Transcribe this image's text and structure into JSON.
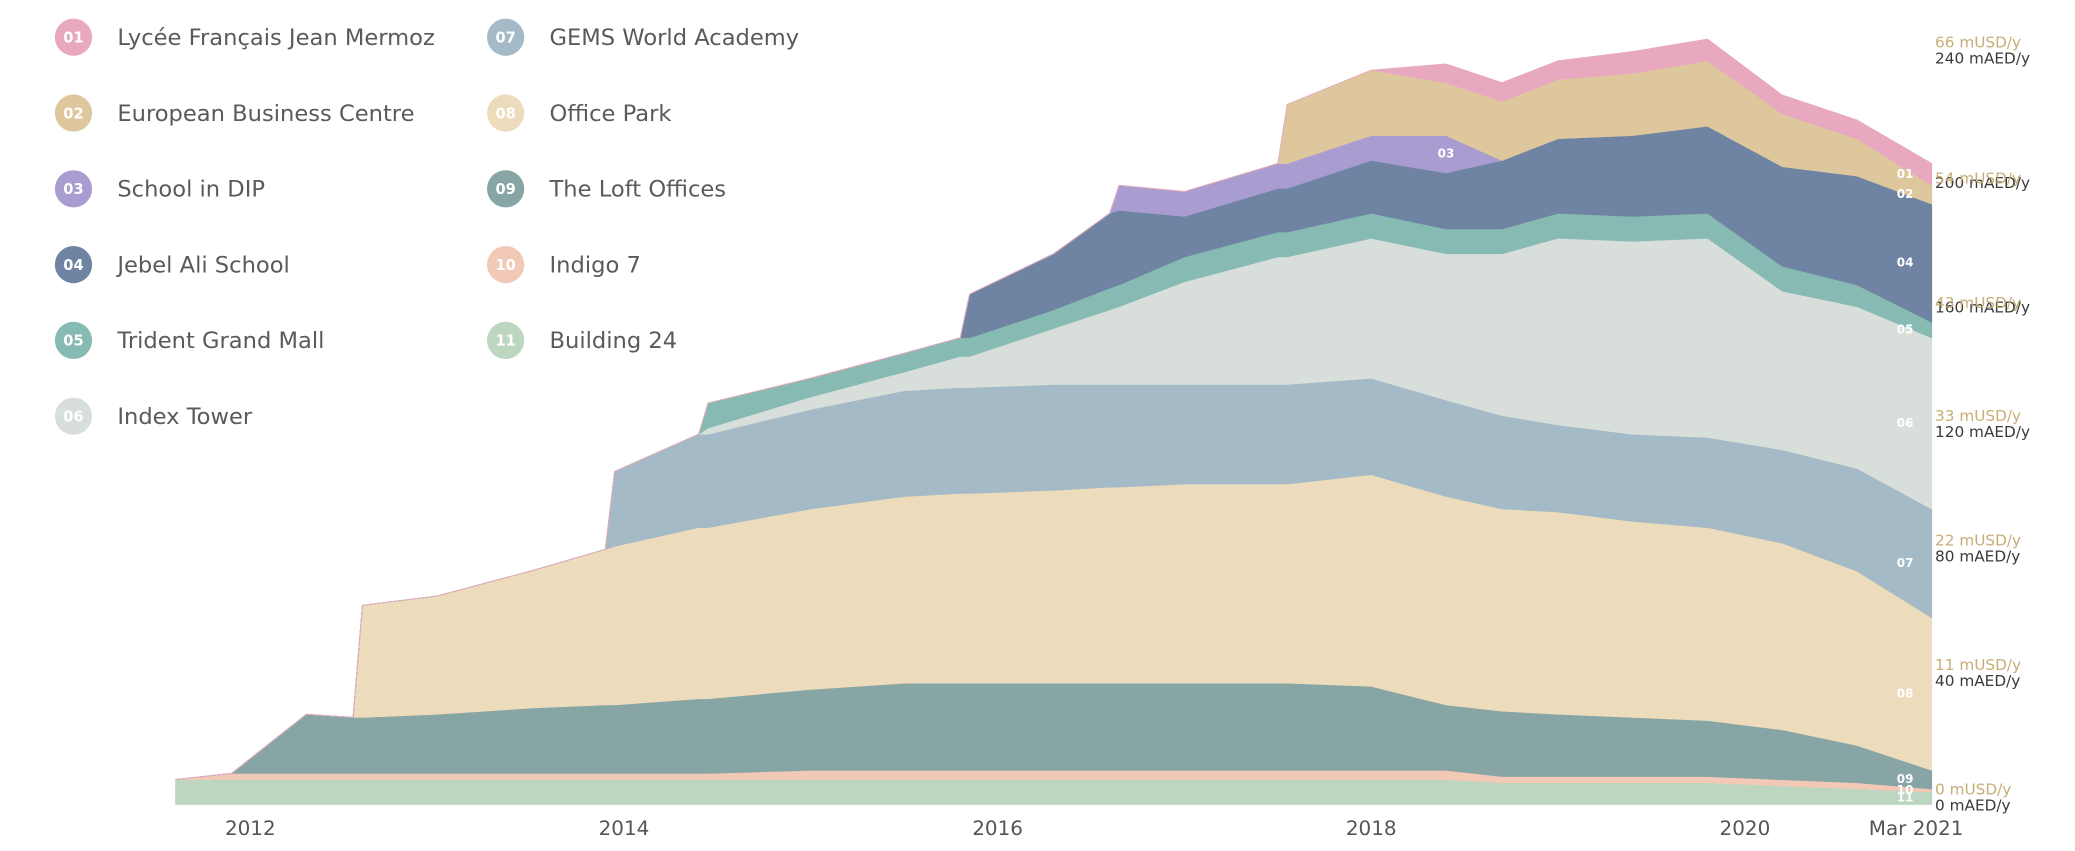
{
  "chart_data": {
    "type": "stacked_area",
    "x": [
      2011.6,
      2011.9,
      2012.3,
      2012.55,
      2012.6,
      2013.0,
      2013.5,
      2013.9,
      2013.95,
      2014.4,
      2014.45,
      2015.0,
      2015.5,
      2015.8,
      2015.85,
      2016.3,
      2016.6,
      2016.65,
      2017.0,
      2017.5,
      2017.55,
      2018.0,
      2018.4,
      2018.7,
      2019.0,
      2019.4,
      2019.8,
      2020.2,
      2020.6,
      2021.0
    ],
    "xlim": [
      2011.6,
      2021.17
    ],
    "xticks": [
      2012,
      2014,
      2016,
      2018,
      2020,
      {
        "value": 2021.17,
        "label": "Mar 2021"
      }
    ],
    "ylim": [
      0,
      240
    ],
    "yticks": [
      {
        "value": 0,
        "label": "0 mAED/y"
      },
      {
        "value": 40,
        "label": "40 mAED/y"
      },
      {
        "value": 80,
        "label": "80 mAED/y"
      },
      {
        "value": 120,
        "label": "120 mAED/y"
      },
      {
        "value": 160,
        "label": "160 mAED/y"
      },
      {
        "value": 200,
        "label": "200 mAED/y"
      },
      {
        "value": 240,
        "label": "240 mAED/y"
      }
    ],
    "y2lim": [
      0,
      66
    ],
    "y2ticks": [
      {
        "value": 0,
        "label": "0 mUSD/y"
      },
      {
        "value": 11,
        "label": "11 mUSD/y"
      },
      {
        "value": 22,
        "label": "22 mUSD/y"
      },
      {
        "value": 33,
        "label": "33 mUSD/y"
      },
      {
        "value": 43,
        "label": "43 mUSD/y"
      },
      {
        "value": 54,
        "label": "54 mUSD/y"
      },
      {
        "value": 66,
        "label": "66 mUSD/y"
      }
    ],
    "grid": false,
    "legend": "top-left",
    "series": [
      {
        "code": "01",
        "name": "Lycée Français Jean Mermoz",
        "color": "#e8a8c0",
        "values": [
          0,
          0,
          0,
          0,
          0,
          0,
          0,
          0,
          0,
          0,
          0,
          0,
          0,
          0,
          0,
          0,
          0,
          0,
          0,
          0,
          0,
          0,
          6,
          6,
          6,
          7,
          7,
          6,
          6,
          7
        ]
      },
      {
        "code": "02",
        "name": "European Business Centre",
        "color": "#dec79d",
        "values": [
          0,
          0,
          0,
          0,
          0,
          0,
          0,
          0,
          0,
          0,
          0,
          0,
          0,
          0,
          0,
          0,
          0,
          0,
          0,
          0,
          19,
          21,
          17,
          19,
          19,
          20,
          21,
          17,
          12,
          6
        ]
      },
      {
        "code": "03",
        "name": "School in DIP",
        "color": "#a99cd0",
        "values": [
          0,
          0,
          0,
          0,
          0,
          0,
          0,
          0,
          0,
          0,
          0,
          0,
          0,
          0,
          0,
          0,
          0,
          8,
          8,
          8,
          8,
          8,
          12,
          0,
          0,
          0,
          0,
          0,
          0,
          0
        ]
      },
      {
        "code": "04",
        "name": "Jebel Ali School",
        "color": "#6f84a2",
        "values": [
          0,
          0,
          0,
          0,
          0,
          0,
          0,
          0,
          0,
          0,
          0,
          0,
          0,
          0,
          14,
          18,
          24,
          24,
          13,
          14,
          14,
          17,
          18,
          22,
          24,
          26,
          28,
          32,
          35,
          38
        ]
      },
      {
        "code": "05",
        "name": "Trident Grand Mall",
        "color": "#87bab3",
        "values": [
          0,
          0,
          0,
          0,
          0,
          0,
          0,
          0,
          0,
          0,
          8,
          6,
          6,
          6,
          6,
          6,
          7,
          7,
          8,
          8,
          8,
          8,
          8,
          8,
          8,
          8,
          8,
          8,
          7,
          5
        ]
      },
      {
        "code": "06",
        "name": "Index Tower",
        "color": "#d8dfdb",
        "values": [
          0,
          0,
          0,
          0,
          0,
          0,
          0,
          0,
          0,
          0,
          2,
          4,
          6,
          10,
          10,
          18,
          24,
          25,
          33,
          41,
          41,
          45,
          47,
          52,
          60,
          62,
          64,
          51,
          52,
          55
        ]
      },
      {
        "code": "07",
        "name": "GEMS World Academy",
        "color": "#a4bac6",
        "values": [
          0,
          0,
          0,
          0,
          0,
          0,
          0,
          0,
          24,
          30,
          30,
          32,
          34,
          34,
          34,
          34,
          33,
          33,
          32,
          32,
          32,
          31,
          31,
          30,
          28,
          28,
          29,
          30,
          33,
          35
        ]
      },
      {
        "code": "08",
        "name": "Office Park",
        "color": "#eddcbb",
        "values": [
          0,
          0,
          0,
          0,
          36,
          38,
          44,
          50,
          51,
          55,
          55,
          58,
          60,
          61,
          61,
          62,
          63,
          63,
          64,
          64,
          64,
          68,
          67,
          65,
          65,
          63,
          62,
          60,
          56,
          49
        ]
      },
      {
        "code": "09",
        "name": "The Loft Offices",
        "color": "#87a5a4",
        "values": [
          0,
          0,
          19,
          18,
          18,
          19,
          21,
          22,
          22,
          24,
          24,
          26,
          28,
          28,
          28,
          28,
          28,
          28,
          28,
          28,
          28,
          27,
          21,
          21,
          20,
          19,
          18,
          16,
          12,
          6
        ]
      },
      {
        "code": "10",
        "name": "Indigo 7",
        "color": "#f2c9b6",
        "values": [
          0,
          2,
          2,
          2,
          2,
          2,
          2,
          2,
          2,
          2,
          2,
          3,
          3,
          3,
          3,
          3,
          3,
          3,
          3,
          3,
          3,
          3,
          3,
          2,
          2,
          2,
          2,
          2,
          2,
          1
        ]
      },
      {
        "code": "11",
        "name": "Building 24",
        "color": "#bdd6c0",
        "values": [
          8,
          8,
          8,
          8,
          8,
          8,
          8,
          8,
          8,
          8,
          8,
          8,
          8,
          8,
          8,
          8,
          8,
          8,
          8,
          8,
          8,
          8,
          8,
          7,
          7,
          7,
          7,
          6,
          5,
          4
        ]
      }
    ]
  }
}
